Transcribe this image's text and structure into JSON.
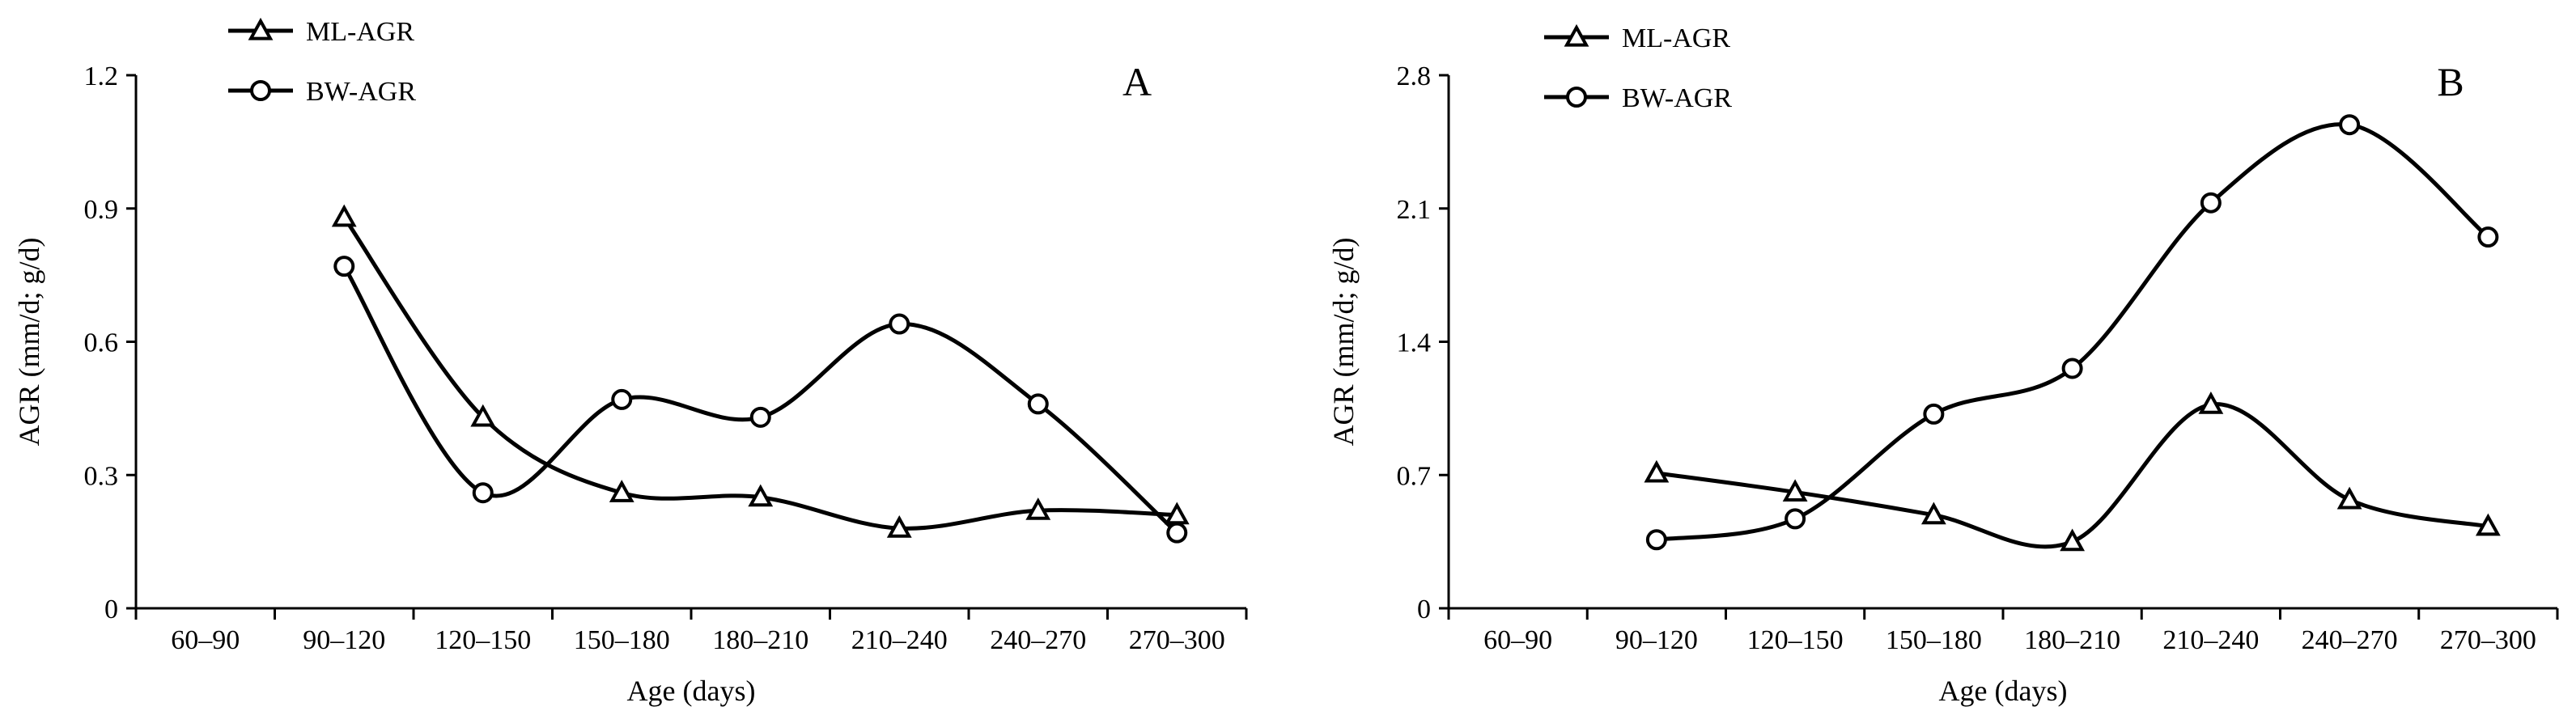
{
  "chart_data": [
    {
      "type": "line",
      "panel_label": "A",
      "xlabel": "Age (days)",
      "ylabel": "AGR (mm/d; g/d)",
      "categories": [
        "60–90",
        "90–120",
        "120–150",
        "150–180",
        "180–210",
        "210–240",
        "240–270",
        "270–300"
      ],
      "yticks": [
        "0",
        "0.3",
        "0.6",
        "0.9",
        "1.2"
      ],
      "ylim": [
        0,
        1.2
      ],
      "series": [
        {
          "name": "ML-AGR",
          "marker": "triangle",
          "values": [
            null,
            0.88,
            0.43,
            0.26,
            0.25,
            0.18,
            0.22,
            0.21
          ]
        },
        {
          "name": "BW-AGR",
          "marker": "circle",
          "values": [
            null,
            0.77,
            0.26,
            0.47,
            0.43,
            0.64,
            0.46,
            0.17
          ]
        }
      ],
      "legend": "top-left",
      "grid": false
    },
    {
      "type": "line",
      "panel_label": "B",
      "xlabel": "Age (days)",
      "ylabel": "AGR (mm/d; g/d)",
      "categories": [
        "60–90",
        "90–120",
        "120–150",
        "150–180",
        "180–210",
        "210–240",
        "240–270",
        "270–300"
      ],
      "yticks": [
        "0",
        "0.7",
        "1.4",
        "2.1",
        "2.8"
      ],
      "ylim": [
        0,
        2.8
      ],
      "series": [
        {
          "name": "ML-AGR",
          "marker": "triangle",
          "values": [
            null,
            0.71,
            0.61,
            0.49,
            0.35,
            1.07,
            0.57,
            0.43
          ]
        },
        {
          "name": "BW-AGR",
          "marker": "circle",
          "values": [
            null,
            0.36,
            0.47,
            1.02,
            1.26,
            2.13,
            2.54,
            1.95
          ]
        }
      ],
      "legend": "top-left",
      "grid": false
    }
  ]
}
